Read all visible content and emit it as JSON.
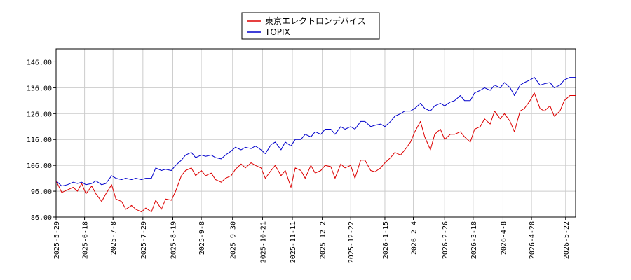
{
  "chart_data": {
    "type": "line",
    "ylim": [
      86,
      151
    ],
    "yticks": [
      86,
      96,
      106,
      116,
      126,
      136,
      146
    ],
    "ytick_labels": [
      "86.00",
      "96.00",
      "106.00",
      "116.00",
      "126.00",
      "136.00",
      "146.00"
    ],
    "xlim": [
      "2025-05-29",
      "2026-05-29"
    ],
    "xticks": [
      "2025-5-29",
      "2025-6-18",
      "2025-7-8",
      "2025-7-29",
      "2025-8-19",
      "2025-9-8",
      "2025-9-30",
      "2025-10-21",
      "2025-11-11",
      "2025-12-2",
      "2025-12-22",
      "2026-1-15",
      "2026-2-4",
      "2026-2-26",
      "2026-3-18",
      "2026-4-8",
      "2026-4-28",
      "2026-5-22"
    ],
    "grid": true,
    "legend_position": "top-center",
    "series": [
      {
        "name": "東京エレクトロンデバイス",
        "color": "#dd0000",
        "points": [
          [
            "2025-05-29",
            100.0
          ],
          [
            "2025-06-02",
            95.5
          ],
          [
            "2025-06-06",
            96.5
          ],
          [
            "2025-06-10",
            97.5
          ],
          [
            "2025-06-13",
            96.0
          ],
          [
            "2025-06-16",
            99.0
          ],
          [
            "2025-06-19",
            95.0
          ],
          [
            "2025-06-23",
            98.0
          ],
          [
            "2025-06-26",
            95.0
          ],
          [
            "2025-06-30",
            92.0
          ],
          [
            "2025-07-03",
            95.0
          ],
          [
            "2025-07-07",
            98.5
          ],
          [
            "2025-07-10",
            93.0
          ],
          [
            "2025-07-14",
            92.0
          ],
          [
            "2025-07-17",
            89.0
          ],
          [
            "2025-07-21",
            90.5
          ],
          [
            "2025-07-24",
            89.0
          ],
          [
            "2025-07-28",
            88.0
          ],
          [
            "2025-07-31",
            89.5
          ],
          [
            "2025-08-04",
            88.0
          ],
          [
            "2025-08-07",
            92.5
          ],
          [
            "2025-08-11",
            89.0
          ],
          [
            "2025-08-14",
            93.0
          ],
          [
            "2025-08-18",
            92.5
          ],
          [
            "2025-08-21",
            96.0
          ],
          [
            "2025-08-25",
            102.0
          ],
          [
            "2025-08-28",
            104.0
          ],
          [
            "2025-09-01",
            105.0
          ],
          [
            "2025-09-04",
            102.0
          ],
          [
            "2025-09-08",
            104.0
          ],
          [
            "2025-09-11",
            102.0
          ],
          [
            "2025-09-15",
            103.0
          ],
          [
            "2025-09-18",
            100.5
          ],
          [
            "2025-09-22",
            99.5
          ],
          [
            "2025-09-25",
            101.0
          ],
          [
            "2025-09-29",
            102.0
          ],
          [
            "2025-10-02",
            104.5
          ],
          [
            "2025-10-06",
            106.5
          ],
          [
            "2025-10-09",
            105.0
          ],
          [
            "2025-10-13",
            107.0
          ],
          [
            "2025-10-16",
            106.0
          ],
          [
            "2025-10-20",
            105.0
          ],
          [
            "2025-10-23",
            101.0
          ],
          [
            "2025-10-27",
            104.0
          ],
          [
            "2025-10-30",
            106.0
          ],
          [
            "2025-11-03",
            102.0
          ],
          [
            "2025-11-06",
            104.0
          ],
          [
            "2025-11-10",
            97.5
          ],
          [
            "2025-11-13",
            105.0
          ],
          [
            "2025-11-17",
            104.0
          ],
          [
            "2025-11-20",
            101.0
          ],
          [
            "2025-11-24",
            106.0
          ],
          [
            "2025-11-27",
            103.0
          ],
          [
            "2025-12-01",
            104.0
          ],
          [
            "2025-12-04",
            106.0
          ],
          [
            "2025-12-08",
            105.5
          ],
          [
            "2025-12-11",
            101.0
          ],
          [
            "2025-12-15",
            106.5
          ],
          [
            "2025-12-18",
            105.0
          ],
          [
            "2025-12-22",
            106.0
          ],
          [
            "2025-12-25",
            101.0
          ],
          [
            "2025-12-29",
            108.0
          ],
          [
            "2026-01-01",
            108.0
          ],
          [
            "2026-01-05",
            104.0
          ],
          [
            "2026-01-08",
            103.5
          ],
          [
            "2026-01-12",
            105.0
          ],
          [
            "2026-01-15",
            107.0
          ],
          [
            "2026-01-19",
            109.0
          ],
          [
            "2026-01-22",
            111.0
          ],
          [
            "2026-01-26",
            110.0
          ],
          [
            "2026-01-29",
            112.0
          ],
          [
            "2026-02-02",
            115.0
          ],
          [
            "2026-02-05",
            119.0
          ],
          [
            "2026-02-09",
            123.0
          ],
          [
            "2026-02-12",
            117.0
          ],
          [
            "2026-02-16",
            112.0
          ],
          [
            "2026-02-19",
            118.0
          ],
          [
            "2026-02-23",
            120.0
          ],
          [
            "2026-02-26",
            116.0
          ],
          [
            "2026-03-02",
            118.0
          ],
          [
            "2026-03-05",
            118.0
          ],
          [
            "2026-03-09",
            119.0
          ],
          [
            "2026-03-12",
            117.0
          ],
          [
            "2026-03-16",
            115.0
          ],
          [
            "2026-03-19",
            120.0
          ],
          [
            "2026-03-23",
            121.0
          ],
          [
            "2026-03-26",
            124.0
          ],
          [
            "2026-03-30",
            122.0
          ],
          [
            "2026-04-02",
            127.0
          ],
          [
            "2026-04-06",
            124.0
          ],
          [
            "2026-04-09",
            126.0
          ],
          [
            "2026-04-13",
            123.0
          ],
          [
            "2026-04-16",
            119.0
          ],
          [
            "2026-04-20",
            127.0
          ],
          [
            "2026-04-23",
            128.0
          ],
          [
            "2026-04-27",
            131.0
          ],
          [
            "2026-04-30",
            134.0
          ],
          [
            "2026-05-04",
            128.0
          ],
          [
            "2026-05-07",
            127.0
          ],
          [
            "2026-05-11",
            129.0
          ],
          [
            "2026-05-14",
            125.0
          ],
          [
            "2026-05-18",
            127.0
          ],
          [
            "2026-05-21",
            131.0
          ],
          [
            "2026-05-25",
            133.0
          ],
          [
            "2026-05-29",
            133.0
          ]
        ]
      },
      {
        "name": "TOPIX",
        "color": "#0000cc",
        "points": [
          [
            "2025-05-29",
            100.0
          ],
          [
            "2025-06-02",
            98.0
          ],
          [
            "2025-06-06",
            98.5
          ],
          [
            "2025-06-10",
            99.5
          ],
          [
            "2025-06-13",
            99.0
          ],
          [
            "2025-06-16",
            99.5
          ],
          [
            "2025-06-19",
            98.5
          ],
          [
            "2025-06-23",
            99.0
          ],
          [
            "2025-06-26",
            100.0
          ],
          [
            "2025-06-30",
            98.5
          ],
          [
            "2025-07-03",
            99.0
          ],
          [
            "2025-07-07",
            102.0
          ],
          [
            "2025-07-10",
            101.0
          ],
          [
            "2025-07-14",
            100.5
          ],
          [
            "2025-07-17",
            101.0
          ],
          [
            "2025-07-21",
            100.5
          ],
          [
            "2025-07-24",
            101.0
          ],
          [
            "2025-07-28",
            100.5
          ],
          [
            "2025-07-31",
            101.0
          ],
          [
            "2025-08-04",
            101.0
          ],
          [
            "2025-08-07",
            105.0
          ],
          [
            "2025-08-11",
            104.0
          ],
          [
            "2025-08-14",
            104.5
          ],
          [
            "2025-08-18",
            104.0
          ],
          [
            "2025-08-21",
            106.0
          ],
          [
            "2025-08-25",
            108.0
          ],
          [
            "2025-08-28",
            110.0
          ],
          [
            "2025-09-01",
            111.0
          ],
          [
            "2025-09-04",
            109.0
          ],
          [
            "2025-09-08",
            110.0
          ],
          [
            "2025-09-11",
            109.5
          ],
          [
            "2025-09-15",
            110.0
          ],
          [
            "2025-09-18",
            109.0
          ],
          [
            "2025-09-22",
            108.5
          ],
          [
            "2025-09-25",
            110.0
          ],
          [
            "2025-09-29",
            111.5
          ],
          [
            "2025-10-02",
            113.0
          ],
          [
            "2025-10-06",
            112.0
          ],
          [
            "2025-10-09",
            113.0
          ],
          [
            "2025-10-13",
            112.5
          ],
          [
            "2025-10-16",
            113.5
          ],
          [
            "2025-10-20",
            112.0
          ],
          [
            "2025-10-23",
            110.5
          ],
          [
            "2025-10-27",
            114.0
          ],
          [
            "2025-10-30",
            115.0
          ],
          [
            "2025-11-03",
            112.0
          ],
          [
            "2025-11-06",
            115.0
          ],
          [
            "2025-11-10",
            113.5
          ],
          [
            "2025-11-13",
            116.0
          ],
          [
            "2025-11-17",
            116.0
          ],
          [
            "2025-11-20",
            118.0
          ],
          [
            "2025-11-24",
            117.0
          ],
          [
            "2025-11-27",
            119.0
          ],
          [
            "2025-12-01",
            118.0
          ],
          [
            "2025-12-04",
            120.0
          ],
          [
            "2025-12-08",
            120.0
          ],
          [
            "2025-12-11",
            118.0
          ],
          [
            "2025-12-15",
            121.0
          ],
          [
            "2025-12-18",
            120.0
          ],
          [
            "2025-12-22",
            121.0
          ],
          [
            "2025-12-25",
            120.0
          ],
          [
            "2025-12-29",
            123.0
          ],
          [
            "2026-01-01",
            123.0
          ],
          [
            "2026-01-05",
            121.0
          ],
          [
            "2026-01-08",
            121.5
          ],
          [
            "2026-01-12",
            122.0
          ],
          [
            "2026-01-15",
            121.0
          ],
          [
            "2026-01-19",
            123.0
          ],
          [
            "2026-01-22",
            125.0
          ],
          [
            "2026-01-26",
            126.0
          ],
          [
            "2026-01-29",
            127.0
          ],
          [
            "2026-02-02",
            127.0
          ],
          [
            "2026-02-05",
            128.0
          ],
          [
            "2026-02-09",
            130.0
          ],
          [
            "2026-02-12",
            128.0
          ],
          [
            "2026-02-16",
            127.0
          ],
          [
            "2026-02-19",
            129.0
          ],
          [
            "2026-02-23",
            130.0
          ],
          [
            "2026-02-26",
            129.0
          ],
          [
            "2026-03-02",
            130.5
          ],
          [
            "2026-03-05",
            131.0
          ],
          [
            "2026-03-09",
            133.0
          ],
          [
            "2026-03-12",
            131.0
          ],
          [
            "2026-03-16",
            131.0
          ],
          [
            "2026-03-19",
            134.0
          ],
          [
            "2026-03-23",
            135.0
          ],
          [
            "2026-03-26",
            136.0
          ],
          [
            "2026-03-30",
            135.0
          ],
          [
            "2026-04-02",
            137.0
          ],
          [
            "2026-04-06",
            136.0
          ],
          [
            "2026-04-09",
            138.0
          ],
          [
            "2026-04-13",
            136.0
          ],
          [
            "2026-04-16",
            133.0
          ],
          [
            "2026-04-20",
            137.0
          ],
          [
            "2026-04-23",
            138.0
          ],
          [
            "2026-04-27",
            139.0
          ],
          [
            "2026-04-30",
            140.0
          ],
          [
            "2026-05-04",
            137.0
          ],
          [
            "2026-05-07",
            137.5
          ],
          [
            "2026-05-11",
            138.0
          ],
          [
            "2026-05-14",
            136.0
          ],
          [
            "2026-05-18",
            137.0
          ],
          [
            "2026-05-21",
            139.0
          ],
          [
            "2026-05-25",
            140.0
          ],
          [
            "2026-05-29",
            140.0
          ]
        ]
      }
    ]
  }
}
